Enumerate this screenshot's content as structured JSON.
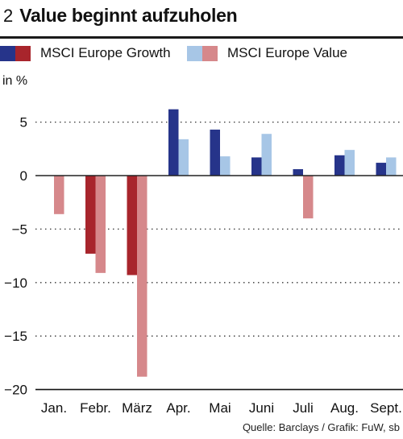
{
  "figure": {
    "number": "2",
    "title": "Value beginnt aufzuholen",
    "source": "Quelle: Barclays / Grafik: FuW, sb"
  },
  "chart_data": {
    "type": "bar",
    "ylabel": "in %",
    "ylim": [
      -20,
      7
    ],
    "yticks": [
      5,
      0,
      -5,
      -10,
      -15,
      -20
    ],
    "grid": true,
    "legend_position": "top",
    "categories": [
      "Jan.",
      "Febr.",
      "März",
      "Apr.",
      "Mai",
      "Juni",
      "Juli",
      "Aug.",
      "Sept."
    ],
    "series": [
      {
        "name": "MSCI Europe Growth",
        "positive_color": "#26348a",
        "negative_color": "#a8252c",
        "values": [
          0.0,
          -7.3,
          -9.3,
          6.2,
          4.3,
          1.7,
          0.6,
          1.9,
          1.2
        ]
      },
      {
        "name": "MSCI Europe Value",
        "positive_color": "#a7c6e6",
        "negative_color": "#d6888b",
        "values": [
          -3.6,
          -9.1,
          -18.8,
          3.4,
          1.8,
          3.9,
          -4.0,
          2.4,
          1.7
        ]
      }
    ]
  }
}
